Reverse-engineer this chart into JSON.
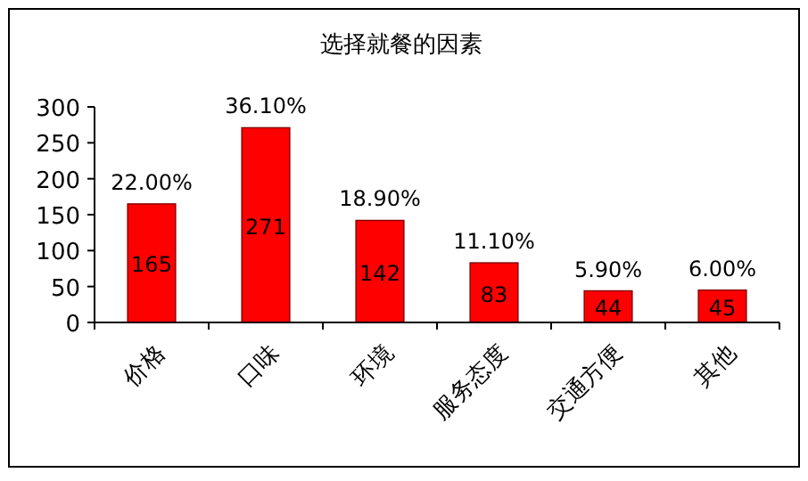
{
  "chart_data": {
    "type": "bar",
    "title": "选择就餐的因素",
    "categories": [
      "价格",
      "口味",
      "环境",
      "服务态度",
      "交通方便",
      "其他"
    ],
    "values": [
      165,
      271,
      142,
      83,
      44,
      45
    ],
    "color": "#ff0000",
    "ylim": [
      0,
      300
    ],
    "yticks": [
      0,
      50,
      100,
      150,
      200,
      250,
      300
    ],
    "data_labels": true,
    "annotations": [
      {
        "text": "22.00%",
        "x": "价格",
        "y": 165
      },
      {
        "text": "36.10%",
        "x": "口味",
        "y": 271
      },
      {
        "text": "18.90%",
        "x": "环境",
        "y": 142
      },
      {
        "text": "11.10%",
        "x": "服务态度",
        "y": 83
      },
      {
        "text": "5.90%",
        "x": "交通方便",
        "y": 44
      },
      {
        "text": "6.00%",
        "x": "其他",
        "y": 45
      }
    ]
  }
}
